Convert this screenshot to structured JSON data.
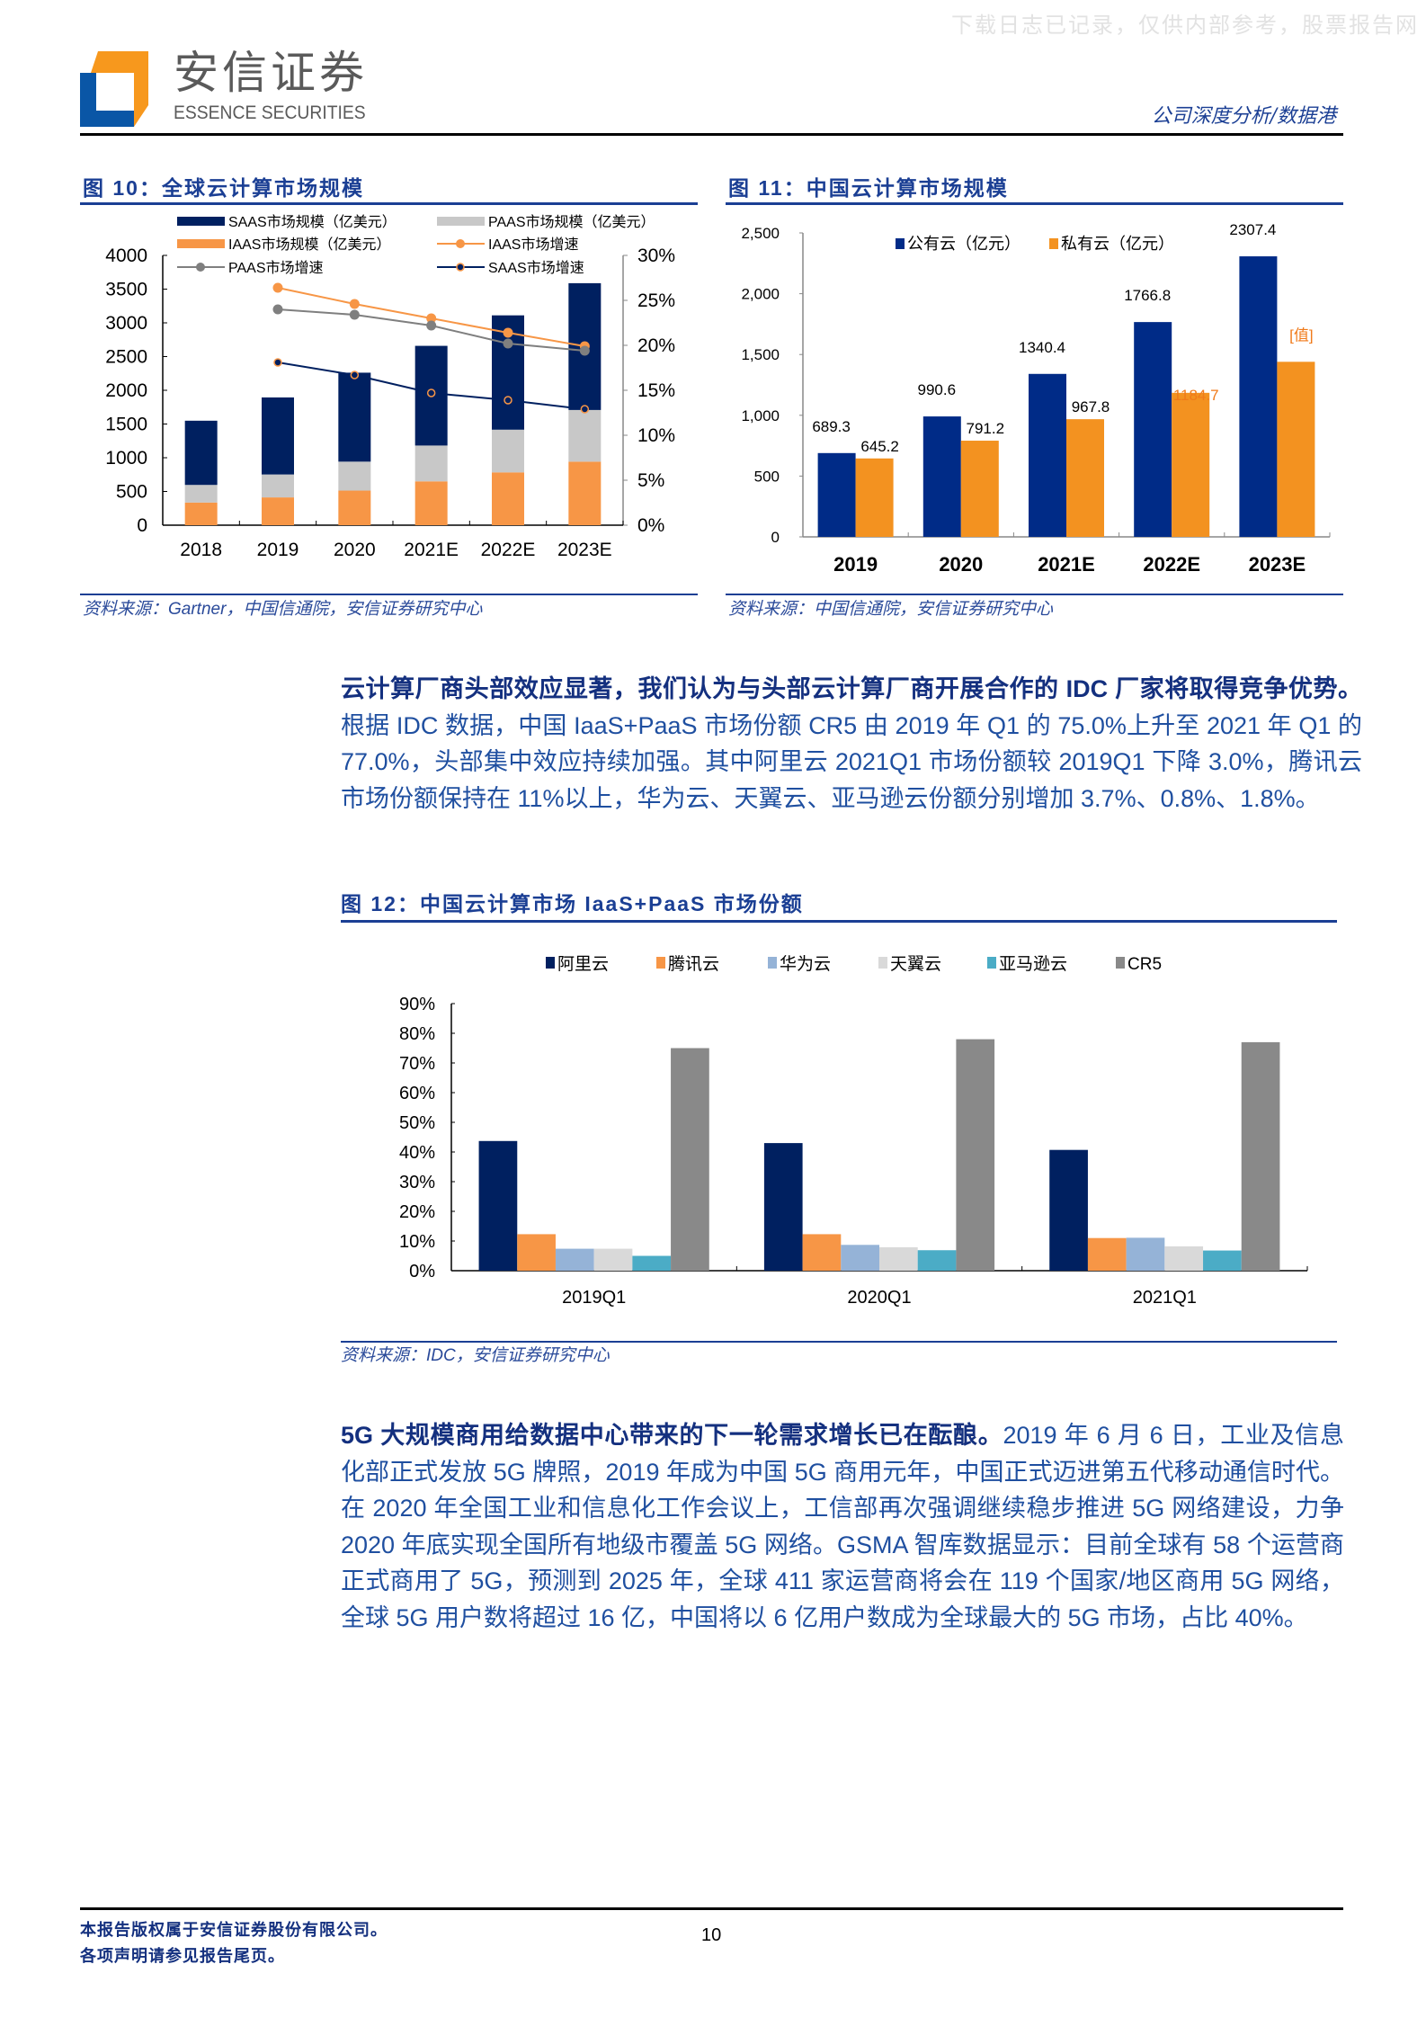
{
  "header": {
    "watermark": "下载日志已记录，仅供内部参考，股票报告网",
    "brand_cn": "安信证券",
    "brand_en": "ESSENCE SECURITIES",
    "report_type": "公司深度分析/数据港"
  },
  "figure10": {
    "title": "图 10：全球云计算市场规模",
    "source": "资料来源：Gartner，中国信通院，安信证券研究中心"
  },
  "figure11": {
    "title": "图 11：中国云计算市场规模",
    "source": "资料来源：中国信通院，安信证券研究中心"
  },
  "figure12": {
    "title": "图 12：中国云计算市场 IaaS+PaaS 市场份额",
    "source": "资料来源：IDC，安信证券研究中心"
  },
  "paragraph1": {
    "lead": "云计算厂商头部效应显著，我们认为与头部云计算厂商开展合作的 IDC 厂家将取得竞争优势。",
    "body": "根据 IDC 数据，中国 IaaS+PaaS 市场份额 CR5 由 2019 年 Q1 的 75.0%上升至 2021 年 Q1 的 77.0%，头部集中效应持续加强。其中阿里云 2021Q1 市场份额较 2019Q1 下降 3.0%，腾讯云市场份额保持在 11%以上，华为云、天翼云、亚马逊云份额分别增加 3.7%、0.8%、1.8%。"
  },
  "paragraph2": {
    "lead": "5G 大规模商用给数据中心带来的下一轮需求增长已在酝酿。",
    "body": "2019 年 6 月 6 日，工业及信息化部正式发放 5G 牌照，2019 年成为中国 5G 商用元年，中国正式迈进第五代移动通信时代。在 2020 年全国工业和信息化工作会议上，工信部再次强调继续稳步推进 5G 网络建设，力争 2020 年底实现全国所有地级市覆盖 5G 网络。GSMA 智库数据显示：目前全球有 58 个运营商正式商用了 5G，预测到 2025 年，全球 411 家运营商将会在 119 个国家/地区商用 5G 网络，全球 5G 用户数将超过 16 亿，中国将以 6 亿用户数成为全球最大的 5G 市场，占比 40%。"
  },
  "footer": {
    "copyright": "本报告版权属于安信证券股份有限公司。",
    "disclaimer": "各项声明请参见报告尾页。",
    "page_number": "10"
  },
  "colors": {
    "brand_blue": "#1b3f94",
    "logo_orange": "#f7981d",
    "logo_blue": "#0a56a6"
  },
  "chart_data": [
    {
      "type": "bar",
      "stacked": true,
      "categories": [
        "2018",
        "2019",
        "2020",
        "2021E",
        "2022E",
        "2023E"
      ],
      "series": [
        {
          "name": "IAAS市场规模（亿美元）",
          "kind": "bar",
          "color": "#F79646",
          "values": [
            336,
            412,
            513,
            650,
            783,
            942
          ]
        },
        {
          "name": "PAAS市场规模（亿美元）",
          "kind": "bar",
          "color": "#C8C8C8",
          "values": [
            261,
            340,
            429,
            531,
            633,
            766
          ]
        },
        {
          "name": "SAAS市场规模（亿美元）",
          "kind": "bar",
          "color": "#002060",
          "values": [
            952,
            1142,
            1319,
            1478,
            1695,
            1880
          ]
        },
        {
          "name": "IAAS市场增速",
          "kind": "line",
          "axis": "right",
          "color": "#F79646",
          "values": [
            null,
            26.4,
            24.6,
            23.0,
            21.4,
            19.9
          ]
        },
        {
          "name": "PAAS市场增速",
          "kind": "line",
          "axis": "right",
          "color": "#7F7F7F",
          "values": [
            null,
            24.0,
            23.4,
            22.2,
            20.2,
            19.4
          ]
        },
        {
          "name": "SAAS市场增速",
          "kind": "line",
          "axis": "right",
          "color": "#002060",
          "values": [
            null,
            18.1,
            16.7,
            14.7,
            13.9,
            12.9
          ]
        }
      ],
      "legend_order": [
        2,
        1,
        0,
        3,
        4,
        5
      ],
      "ylim": [
        0,
        4000
      ],
      "yticks": [
        "0",
        "500",
        "1000",
        "1500",
        "2000",
        "2500",
        "3000",
        "3500",
        "4000"
      ],
      "y2lim": [
        0,
        30
      ],
      "y2ticks": [
        "0%",
        "5%",
        "10%",
        "15%",
        "20%",
        "25%",
        "30%"
      ],
      "grid": false,
      "legend_position": "top"
    },
    {
      "type": "bar",
      "categories": [
        "2019",
        "2020",
        "2021E",
        "2022E",
        "2023E"
      ],
      "series": [
        {
          "name": "公有云（亿元）",
          "color": "#002B87",
          "values": [
            689.3,
            990.6,
            1340.4,
            1766.8,
            2307.4
          ],
          "labels": [
            "689.3",
            "990.6",
            "1340.4",
            "1766.8",
            "2307.4"
          ]
        },
        {
          "name": "私有云（亿元）",
          "color": "#F39220",
          "values": [
            645.2,
            791.2,
            967.8,
            1184.7,
            1440
          ],
          "labels": [
            "645.2",
            "791.2",
            "967.8",
            "1184.7",
            "[值]"
          ]
        }
      ],
      "ylim": [
        0,
        2500
      ],
      "yticks": [
        "0",
        "500",
        "1,000",
        "1,500",
        "2,000",
        "2,500"
      ],
      "grid": false,
      "legend_position": "top"
    },
    {
      "type": "bar",
      "categories": [
        "2019Q1",
        "2020Q1",
        "2021Q1"
      ],
      "series": [
        {
          "name": "阿里云",
          "color": "#002060",
          "values": [
            43.7,
            43.0,
            40.7
          ]
        },
        {
          "name": "腾讯云",
          "color": "#F79646",
          "values": [
            12.3,
            12.3,
            11.0
          ]
        },
        {
          "name": "华为云",
          "color": "#95B3D7",
          "values": [
            7.4,
            8.7,
            11.1
          ]
        },
        {
          "name": "天翼云",
          "color": "#D9D9D9",
          "values": [
            7.4,
            7.9,
            8.2
          ]
        },
        {
          "name": "亚马逊云",
          "color": "#4BACC6",
          "values": [
            5.0,
            6.9,
            6.8
          ]
        },
        {
          "name": "CR5",
          "color": "#898989",
          "values": [
            75.0,
            78.0,
            77.0
          ]
        }
      ],
      "ylim": [
        0,
        90
      ],
      "yticks": [
        "0%",
        "10%",
        "20%",
        "30%",
        "40%",
        "50%",
        "60%",
        "70%",
        "80%",
        "90%"
      ],
      "grid": false,
      "legend_position": "top"
    }
  ]
}
